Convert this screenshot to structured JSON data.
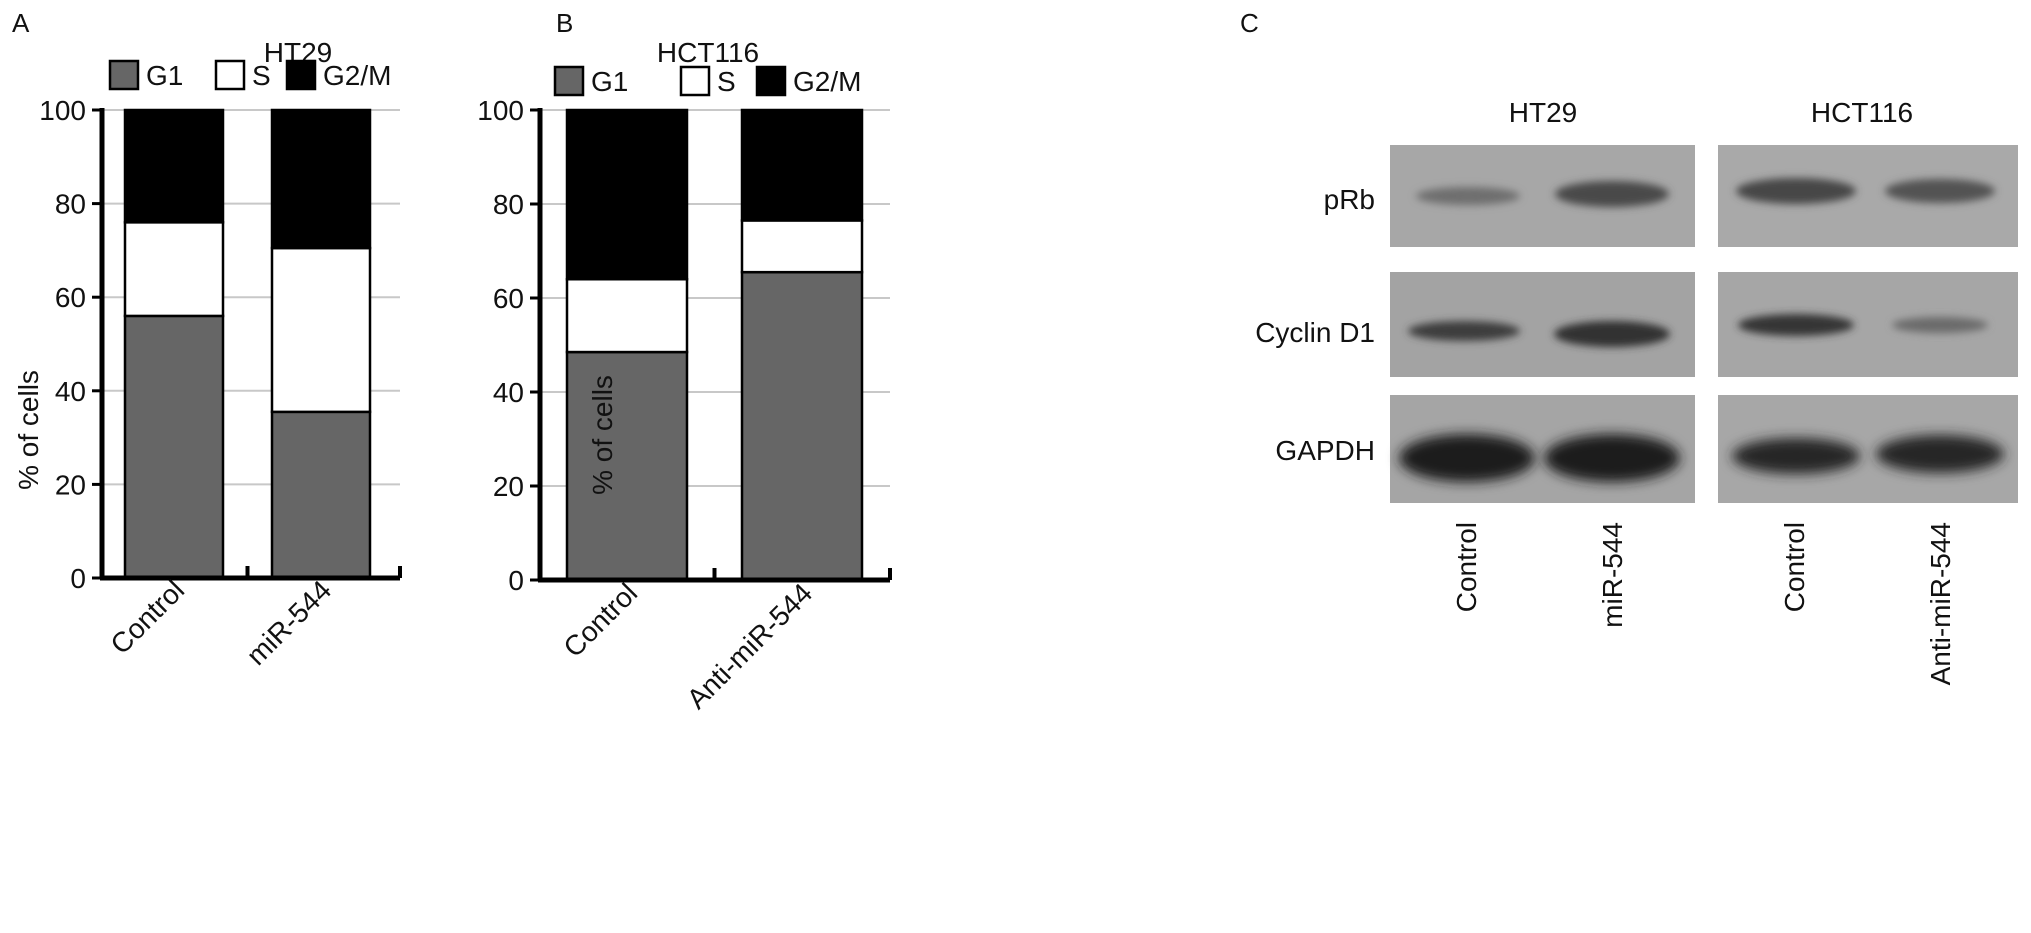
{
  "panels": [
    "A",
    "B",
    "C"
  ],
  "chart_data": [
    {
      "panel": "A",
      "type": "bar",
      "stacked": true,
      "title": "HT29",
      "ylabel": "% of cells",
      "xlabel": "",
      "ylim": [
        0,
        100
      ],
      "yticks": [
        0,
        20,
        40,
        60,
        80,
        100
      ],
      "grid": true,
      "legend_placement": "top",
      "categories": [
        "Control",
        "miR-544"
      ],
      "series": [
        {
          "name": "G1",
          "color": "#666666",
          "values": [
            56,
            35.5
          ]
        },
        {
          "name": "S",
          "color": "#ffffff",
          "values": [
            20,
            35
          ]
        },
        {
          "name": "G2/M",
          "color": "#000000",
          "values": [
            24,
            29.5
          ]
        }
      ]
    },
    {
      "panel": "B",
      "type": "bar",
      "stacked": true,
      "title": "HCT116",
      "ylabel": "% of cells",
      "xlabel": "",
      "ylim": [
        0,
        100
      ],
      "yticks": [
        0,
        20,
        40,
        60,
        80,
        100
      ],
      "grid": true,
      "legend_placement": "top",
      "categories": [
        "Control",
        "Anti-miR-544"
      ],
      "series": [
        {
          "name": "G1",
          "color": "#666666",
          "values": [
            48.5,
            65.5
          ]
        },
        {
          "name": "S",
          "color": "#ffffff",
          "values": [
            15.5,
            11
          ]
        },
        {
          "name": "G2/M",
          "color": "#000000",
          "values": [
            36,
            23.5
          ]
        }
      ]
    }
  ],
  "western_blot": {
    "panel": "C",
    "groups": [
      {
        "name": "HT29",
        "lanes": [
          "Control",
          "miR-544"
        ]
      },
      {
        "name": "HCT116",
        "lanes": [
          "Control",
          "Anti-miR-544"
        ]
      }
    ],
    "rows": [
      "pRb",
      "Cyclin D1",
      "GAPDH"
    ]
  }
}
